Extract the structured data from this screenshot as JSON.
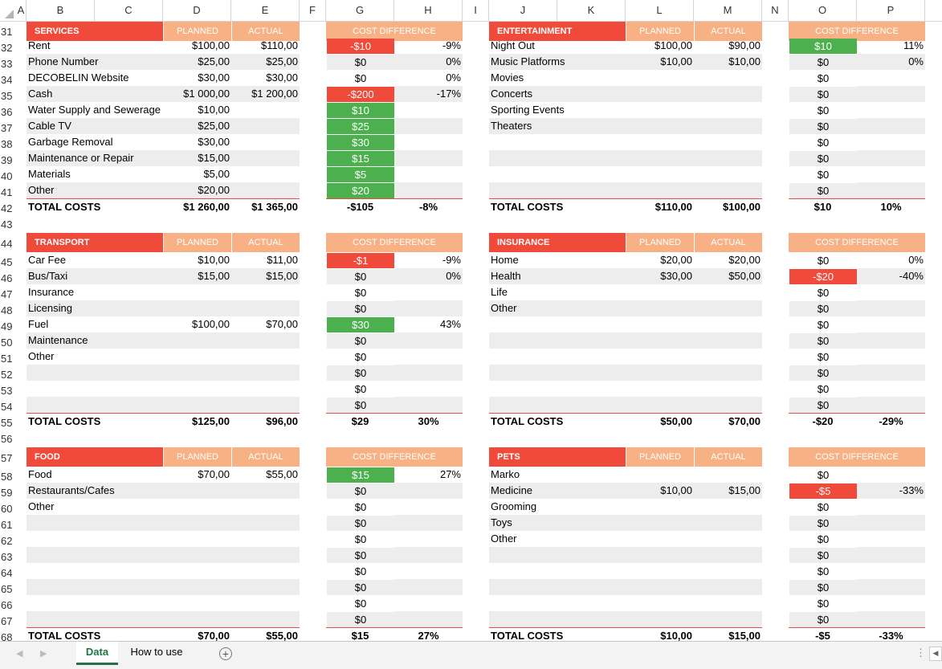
{
  "colors": {
    "section_header": "#f04a3a",
    "column_header": "#f7b184",
    "stripe": "#ededed",
    "positive": "#4cb04f",
    "negative": "#f04a3a",
    "total_line": "#e05244"
  },
  "columns": [
    "A",
    "B",
    "C",
    "D",
    "E",
    "F",
    "G",
    "H",
    "I",
    "J",
    "K",
    "L",
    "M",
    "N",
    "O",
    "P"
  ],
  "rows": [
    "31",
    "32",
    "33",
    "34",
    "35",
    "36",
    "37",
    "38",
    "39",
    "40",
    "41",
    "42",
    "43",
    "44",
    "45",
    "46",
    "47",
    "48",
    "49",
    "50",
    "51",
    "52",
    "53",
    "54",
    "55",
    "56",
    "57",
    "58",
    "59",
    "60",
    "61",
    "62",
    "63",
    "64",
    "65",
    "66",
    "67",
    "68"
  ],
  "section_header_labels": {
    "planned": "PLANNED",
    "actual": "ACTUAL",
    "diff": "COST DIFFERENCE",
    "total": "TOTAL COSTS"
  },
  "blocks": [
    {
      "title": "SERVICES",
      "items": [
        {
          "name": "Rent",
          "planned": "$100,00",
          "actual": "$110,00",
          "diff": "-$10",
          "pct": "-9%",
          "status": "negative"
        },
        {
          "name": "Phone Number",
          "planned": "$25,00",
          "actual": "$25,00",
          "diff": "$0",
          "pct": "0%",
          "status": "none"
        },
        {
          "name": "DECOBELIN Website",
          "planned": "$30,00",
          "actual": "$30,00",
          "diff": "$0",
          "pct": "0%",
          "status": "none"
        },
        {
          "name": "Cash",
          "planned": "$1 000,00",
          "actual": "$1 200,00",
          "diff": "-$200",
          "pct": "-17%",
          "status": "negative"
        },
        {
          "name": "Water Supply and Sewerage",
          "planned": "$10,00",
          "actual": "",
          "diff": "$10",
          "pct": "",
          "status": "positive"
        },
        {
          "name": "Cable TV",
          "planned": "$25,00",
          "actual": "",
          "diff": "$25",
          "pct": "",
          "status": "positive"
        },
        {
          "name": "Garbage Removal",
          "planned": "$30,00",
          "actual": "",
          "diff": "$30",
          "pct": "",
          "status": "positive"
        },
        {
          "name": "Maintenance or Repair",
          "planned": "$15,00",
          "actual": "",
          "diff": "$15",
          "pct": "",
          "status": "positive"
        },
        {
          "name": "Materials",
          "planned": "$5,00",
          "actual": "",
          "diff": "$5",
          "pct": "",
          "status": "positive"
        },
        {
          "name": "Other",
          "planned": "$20,00",
          "actual": "",
          "diff": "$20",
          "pct": "",
          "status": "positive"
        }
      ],
      "total": {
        "planned": "$1 260,00",
        "actual": "$1 365,00",
        "diff": "-$105",
        "pct": "-8%"
      }
    },
    {
      "title": "ENTERTAINMENT",
      "items": [
        {
          "name": "Night Out",
          "planned": "$100,00",
          "actual": "$90,00",
          "diff": "$10",
          "pct": "11%",
          "status": "positive"
        },
        {
          "name": "Music Platforms",
          "planned": "$10,00",
          "actual": "$10,00",
          "diff": "$0",
          "pct": "0%",
          "status": "none"
        },
        {
          "name": "Movies",
          "planned": "",
          "actual": "",
          "diff": "$0",
          "pct": "",
          "status": "none"
        },
        {
          "name": "Concerts",
          "planned": "",
          "actual": "",
          "diff": "$0",
          "pct": "",
          "status": "none"
        },
        {
          "name": "Sporting Events",
          "planned": "",
          "actual": "",
          "diff": "$0",
          "pct": "",
          "status": "none"
        },
        {
          "name": "Theaters",
          "planned": "",
          "actual": "",
          "diff": "$0",
          "pct": "",
          "status": "none"
        },
        {
          "name": "",
          "planned": "",
          "actual": "",
          "diff": "$0",
          "pct": "",
          "status": "none"
        },
        {
          "name": "",
          "planned": "",
          "actual": "",
          "diff": "$0",
          "pct": "",
          "status": "none"
        },
        {
          "name": "",
          "planned": "",
          "actual": "",
          "diff": "$0",
          "pct": "",
          "status": "none"
        },
        {
          "name": "",
          "planned": "",
          "actual": "",
          "diff": "$0",
          "pct": "",
          "status": "none"
        }
      ],
      "total": {
        "planned": "$110,00",
        "actual": "$100,00",
        "diff": "$10",
        "pct": "10%"
      }
    },
    {
      "title": "TRANSPORT",
      "items": [
        {
          "name": "Car Fee",
          "planned": "$10,00",
          "actual": "$11,00",
          "diff": "-$1",
          "pct": "-9%",
          "status": "negative"
        },
        {
          "name": "Bus/Taxi",
          "planned": "$15,00",
          "actual": "$15,00",
          "diff": "$0",
          "pct": "0%",
          "status": "none"
        },
        {
          "name": "Insurance",
          "planned": "",
          "actual": "",
          "diff": "$0",
          "pct": "",
          "status": "none"
        },
        {
          "name": "Licensing",
          "planned": "",
          "actual": "",
          "diff": "$0",
          "pct": "",
          "status": "none"
        },
        {
          "name": "Fuel",
          "planned": "$100,00",
          "actual": "$70,00",
          "diff": "$30",
          "pct": "43%",
          "status": "positive"
        },
        {
          "name": "Maintenance",
          "planned": "",
          "actual": "",
          "diff": "$0",
          "pct": "",
          "status": "none"
        },
        {
          "name": "Other",
          "planned": "",
          "actual": "",
          "diff": "$0",
          "pct": "",
          "status": "none"
        },
        {
          "name": "",
          "planned": "",
          "actual": "",
          "diff": "$0",
          "pct": "",
          "status": "none"
        },
        {
          "name": "",
          "planned": "",
          "actual": "",
          "diff": "$0",
          "pct": "",
          "status": "none"
        },
        {
          "name": "",
          "planned": "",
          "actual": "",
          "diff": "$0",
          "pct": "",
          "status": "none"
        }
      ],
      "total": {
        "planned": "$125,00",
        "actual": "$96,00",
        "diff": "$29",
        "pct": "30%"
      }
    },
    {
      "title": "INSURANCE",
      "items": [
        {
          "name": "Home",
          "planned": "$20,00",
          "actual": "$20,00",
          "diff": "$0",
          "pct": "0%",
          "status": "none"
        },
        {
          "name": "Health",
          "planned": "$30,00",
          "actual": "$50,00",
          "diff": "-$20",
          "pct": "-40%",
          "status": "negative"
        },
        {
          "name": "Life",
          "planned": "",
          "actual": "",
          "diff": "$0",
          "pct": "",
          "status": "none"
        },
        {
          "name": "Other",
          "planned": "",
          "actual": "",
          "diff": "$0",
          "pct": "",
          "status": "none"
        },
        {
          "name": "",
          "planned": "",
          "actual": "",
          "diff": "$0",
          "pct": "",
          "status": "none"
        },
        {
          "name": "",
          "planned": "",
          "actual": "",
          "diff": "$0",
          "pct": "",
          "status": "none"
        },
        {
          "name": "",
          "planned": "",
          "actual": "",
          "diff": "$0",
          "pct": "",
          "status": "none"
        },
        {
          "name": "",
          "planned": "",
          "actual": "",
          "diff": "$0",
          "pct": "",
          "status": "none"
        },
        {
          "name": "",
          "planned": "",
          "actual": "",
          "diff": "$0",
          "pct": "",
          "status": "none"
        },
        {
          "name": "",
          "planned": "",
          "actual": "",
          "diff": "$0",
          "pct": "",
          "status": "none"
        }
      ],
      "total": {
        "planned": "$50,00",
        "actual": "$70,00",
        "diff": "-$20",
        "pct": "-29%"
      }
    },
    {
      "title": "FOOD",
      "items": [
        {
          "name": "Food",
          "planned": "$70,00",
          "actual": "$55,00",
          "diff": "$15",
          "pct": "27%",
          "status": "positive"
        },
        {
          "name": "Restaurants/Cafes",
          "planned": "",
          "actual": "",
          "diff": "$0",
          "pct": "",
          "status": "none"
        },
        {
          "name": "Other",
          "planned": "",
          "actual": "",
          "diff": "$0",
          "pct": "",
          "status": "none"
        },
        {
          "name": "",
          "planned": "",
          "actual": "",
          "diff": "$0",
          "pct": "",
          "status": "none"
        },
        {
          "name": "",
          "planned": "",
          "actual": "",
          "diff": "$0",
          "pct": "",
          "status": "none"
        },
        {
          "name": "",
          "planned": "",
          "actual": "",
          "diff": "$0",
          "pct": "",
          "status": "none"
        },
        {
          "name": "",
          "planned": "",
          "actual": "",
          "diff": "$0",
          "pct": "",
          "status": "none"
        },
        {
          "name": "",
          "planned": "",
          "actual": "",
          "diff": "$0",
          "pct": "",
          "status": "none"
        },
        {
          "name": "",
          "planned": "",
          "actual": "",
          "diff": "$0",
          "pct": "",
          "status": "none"
        },
        {
          "name": "",
          "planned": "",
          "actual": "",
          "diff": "$0",
          "pct": "",
          "status": "none"
        }
      ],
      "total": {
        "planned": "$70,00",
        "actual": "$55,00",
        "diff": "$15",
        "pct": "27%"
      }
    },
    {
      "title": "PETS",
      "items": [
        {
          "name": "Marko",
          "planned": "",
          "actual": "",
          "diff": "$0",
          "pct": "",
          "status": "none"
        },
        {
          "name": "Medicine",
          "planned": "$10,00",
          "actual": "$15,00",
          "diff": "-$5",
          "pct": "-33%",
          "status": "negative"
        },
        {
          "name": "Grooming",
          "planned": "",
          "actual": "",
          "diff": "$0",
          "pct": "",
          "status": "none"
        },
        {
          "name": "Toys",
          "planned": "",
          "actual": "",
          "diff": "$0",
          "pct": "",
          "status": "none"
        },
        {
          "name": "Other",
          "planned": "",
          "actual": "",
          "diff": "$0",
          "pct": "",
          "status": "none"
        },
        {
          "name": "",
          "planned": "",
          "actual": "",
          "diff": "$0",
          "pct": "",
          "status": "none"
        },
        {
          "name": "",
          "planned": "",
          "actual": "",
          "diff": "$0",
          "pct": "",
          "status": "none"
        },
        {
          "name": "",
          "planned": "",
          "actual": "",
          "diff": "$0",
          "pct": "",
          "status": "none"
        },
        {
          "name": "",
          "planned": "",
          "actual": "",
          "diff": "$0",
          "pct": "",
          "status": "none"
        },
        {
          "name": "",
          "planned": "",
          "actual": "",
          "diff": "$0",
          "pct": "",
          "status": "none"
        }
      ],
      "total": {
        "planned": "$10,00",
        "actual": "$15,00",
        "diff": "-$5",
        "pct": "-33%"
      }
    }
  ],
  "sheet_tabs": [
    {
      "label": "Data",
      "active": true
    },
    {
      "label": "How to use",
      "active": false
    }
  ],
  "icons": {
    "add_sheet": "plus-circle-icon",
    "nav_prev": "triangle-left-icon",
    "nav_next": "triangle-right-icon",
    "more": "vertical-dots-icon"
  }
}
